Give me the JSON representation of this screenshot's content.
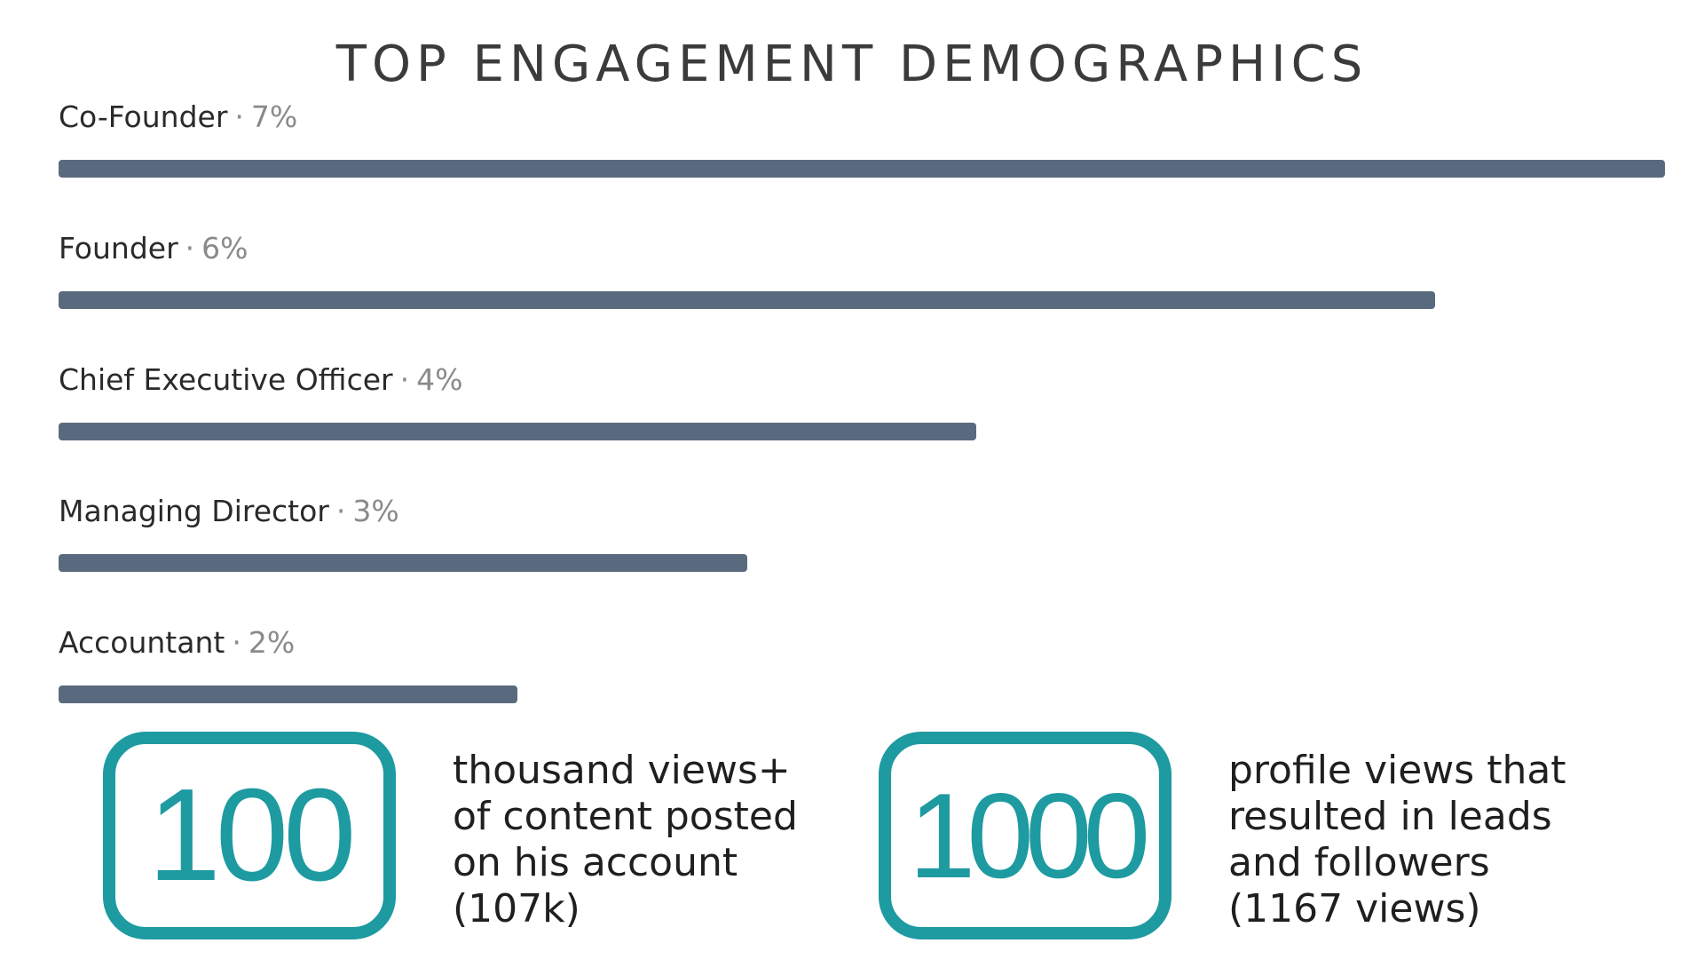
{
  "title": "TOP ENGAGEMENT DEMOGRAPHICS",
  "colors": {
    "bar": "#5a6a7e",
    "accent": "#1e9aa1",
    "label": "#2a2a2a",
    "muted": "#8a8a8a"
  },
  "separator": "·",
  "chart_data": {
    "type": "bar",
    "orientation": "horizontal",
    "title": "TOP ENGAGEMENT DEMOGRAPHICS",
    "categories": [
      "Co-Founder",
      "Founder",
      "Chief Executive Officer",
      "Managing Director",
      "Accountant"
    ],
    "values": [
      7,
      6,
      4,
      3,
      2
    ],
    "value_labels": [
      "7%",
      "6%",
      "4%",
      "3%",
      "2%"
    ],
    "unit": "%",
    "xlim": [
      0,
      7
    ],
    "grid": false,
    "legend": "none"
  },
  "stats": [
    {
      "number": "100",
      "lines": [
        "thousand views+",
        "of content posted",
        "on his account",
        "(107k)"
      ]
    },
    {
      "number": "1000",
      "lines": [
        "profile views that",
        "resulted in leads",
        "and followers",
        "(1167 views)"
      ]
    }
  ]
}
